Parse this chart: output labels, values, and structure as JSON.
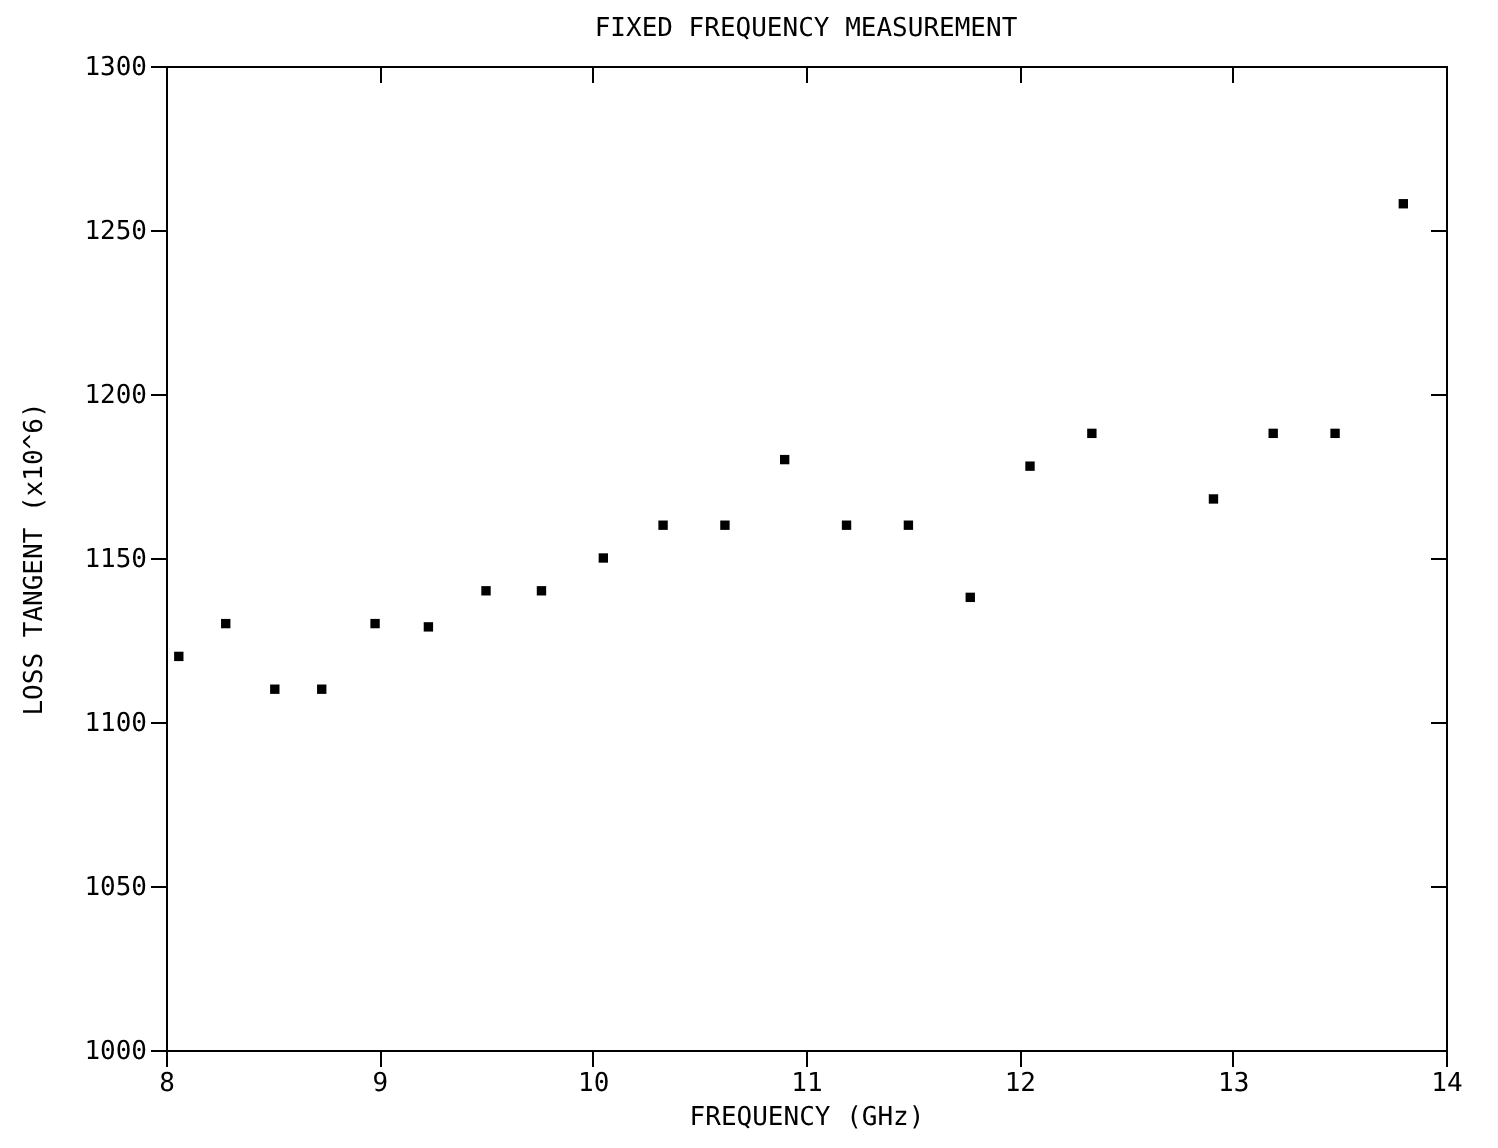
{
  "chart_data": {
    "type": "scatter",
    "title": "FIXED FREQUENCY MEASUREMENT",
    "xlabel": "FREQUENCY (GHz)",
    "ylabel": "LOSS TANGENT (x10^6)",
    "x": [
      8.06,
      8.28,
      8.51,
      8.73,
      8.98,
      9.23,
      9.5,
      9.76,
      10.05,
      10.33,
      10.62,
      10.9,
      11.19,
      11.48,
      11.77,
      12.05,
      12.34,
      12.91,
      13.19,
      13.48,
      13.8
    ],
    "series": [
      {
        "color": "#000000",
        "values": [
          1120,
          1130,
          1110,
          1110,
          1130,
          1129,
          1140,
          1140,
          1150,
          1160,
          1160,
          1180,
          1160,
          1160,
          1138,
          1178,
          1188,
          1168,
          1188,
          1188,
          1258
        ]
      }
    ],
    "xlim": [
      8,
      14
    ],
    "xticks": [
      8,
      9,
      10,
      11,
      12,
      13,
      14
    ],
    "ylim": [
      1000,
      1300
    ],
    "yticks": [
      1000,
      1050,
      1100,
      1150,
      1200,
      1250,
      1300
    ],
    "marker": "square",
    "grid": false,
    "legend": false
  }
}
